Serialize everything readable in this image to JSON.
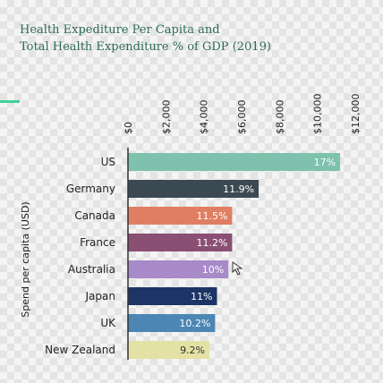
{
  "title_lines": [
    "Health Expediture Per Capita and",
    "Total Health Expenditure % of GDP (2019)"
  ],
  "chart_data": {
    "type": "bar",
    "orientation": "horizontal",
    "title": "Health Expediture Per Capita and Total Health Expenditure % of GDP (2019)",
    "xlabel": "",
    "ylabel": "Spend per capita (USD)",
    "xlim": [
      0,
      12000
    ],
    "x_ticks": [
      "$0",
      "$2,000",
      "$4,000",
      "$6,000",
      "$8,000",
      "$10,000",
      "$12,000"
    ],
    "categories": [
      "US",
      "Germany",
      "Canada",
      "France",
      "Australia",
      "Japan",
      "UK",
      "New Zealand"
    ],
    "values": [
      11200,
      6900,
      5500,
      5500,
      5300,
      4700,
      4600,
      4300
    ],
    "labels": [
      "17%",
      "11.9%",
      "11.5%",
      "11.2%",
      "10%",
      "11%",
      "10.2%",
      "9.2%"
    ],
    "colors": [
      "#7ec1ad",
      "#3b4a52",
      "#e07e63",
      "#8a4f73",
      "#a88ac9",
      "#1c3566",
      "#4b86b4",
      "#e3e2a4"
    ],
    "label_colors": [
      "#ffffff",
      "#ffffff",
      "#ffffff",
      "#ffffff",
      "#ffffff",
      "#ffffff",
      "#ffffff",
      "#333333"
    ],
    "grid": false,
    "legend": "none"
  }
}
